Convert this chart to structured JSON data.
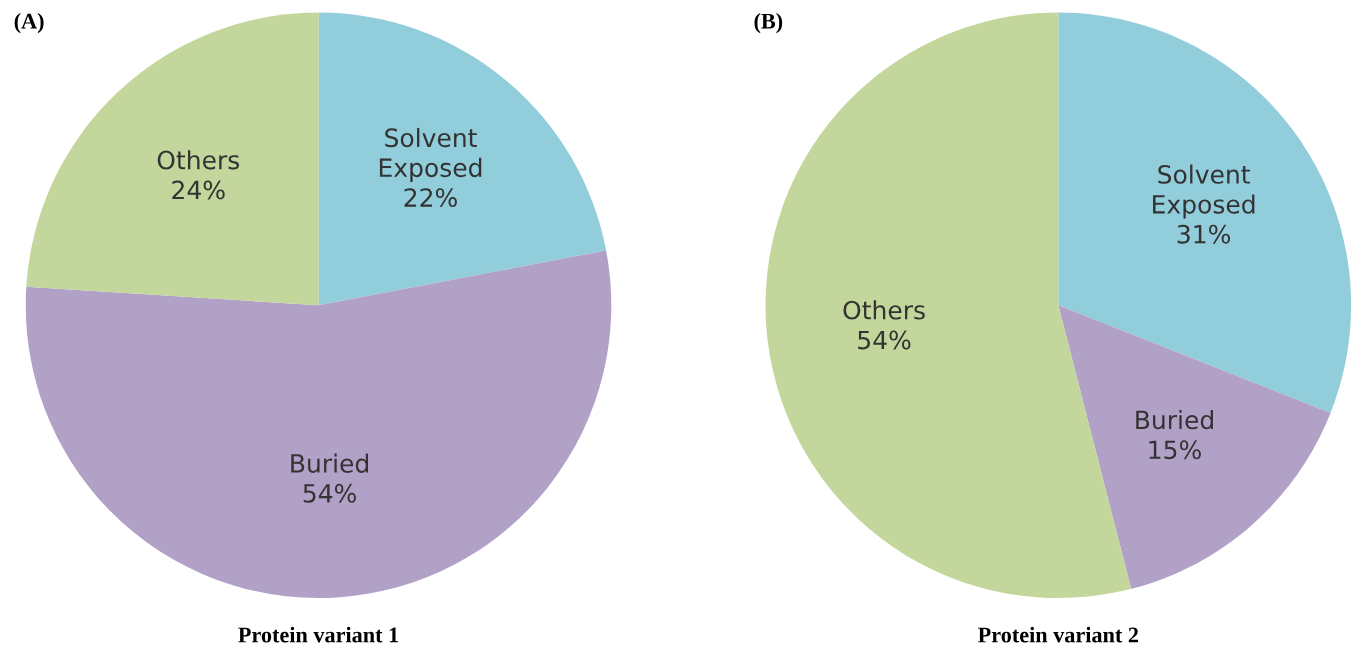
{
  "chart_data": [
    {
      "type": "pie",
      "title": "Protein variant 1",
      "annotations": [
        "(A)"
      ],
      "categories": [
        "Solvent Exposed",
        "Buried",
        "Others"
      ],
      "values": [
        22,
        54,
        24
      ],
      "value_labels": [
        "22%",
        "54%",
        "24%"
      ],
      "colors": [
        "#92cddc",
        "#b2a1c7",
        "#c3d69b"
      ],
      "legend": false
    },
    {
      "type": "pie",
      "title": "Protein variant 2",
      "annotations": [
        "(B)"
      ],
      "categories": [
        "Solvent Exposed",
        "Buried",
        "Others"
      ],
      "values": [
        31,
        15,
        54
      ],
      "value_labels": [
        "31%",
        "15%",
        "54%"
      ],
      "colors": [
        "#92cddc",
        "#b2a1c7",
        "#c3d69b"
      ],
      "legend": false
    }
  ]
}
